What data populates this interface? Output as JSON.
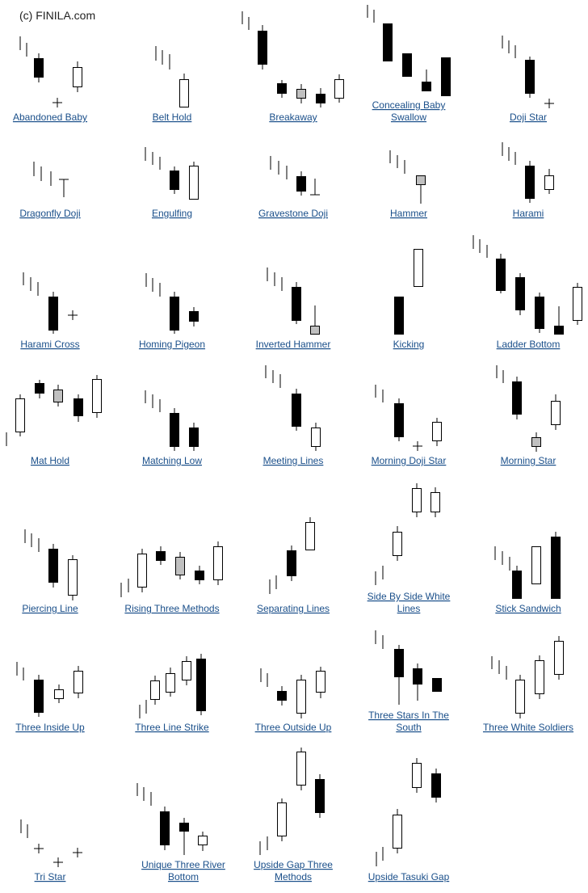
{
  "copyright": "(c) FINILA.com",
  "colors": {
    "bull": "#ffffff",
    "bear": "#000000",
    "neutral": "#c0c0c0",
    "label": "#1a4f8a"
  },
  "patterns": [
    {
      "name": "abandoned-baby",
      "label": [
        "Abandoned Baby"
      ]
    },
    {
      "name": "belt-hold",
      "label": [
        "Belt Hold"
      ]
    },
    {
      "name": "breakaway",
      "label": [
        "Breakaway"
      ]
    },
    {
      "name": "concealing-baby-swallow",
      "label": [
        "Concealing Baby",
        "Swallow"
      ]
    },
    {
      "name": "doji-star",
      "label": [
        "Doji Star"
      ]
    },
    {
      "name": "dragonfly-doji",
      "label": [
        "Dragonfly Doji"
      ]
    },
    {
      "name": "engulfing",
      "label": [
        "Engulfing"
      ]
    },
    {
      "name": "gravestone-doji",
      "label": [
        "Gravestone Doji"
      ]
    },
    {
      "name": "hammer",
      "label": [
        "Hammer"
      ]
    },
    {
      "name": "harami",
      "label": [
        "Harami"
      ]
    },
    {
      "name": "harami-cross",
      "label": [
        "Harami Cross"
      ]
    },
    {
      "name": "homing-pigeon",
      "label": [
        "Homing Pigeon"
      ]
    },
    {
      "name": "inverted-hammer",
      "label": [
        "Inverted Hammer"
      ]
    },
    {
      "name": "kicking",
      "label": [
        "Kicking"
      ]
    },
    {
      "name": "ladder-bottom",
      "label": [
        "Ladder Bottom"
      ]
    },
    {
      "name": "mat-hold",
      "label": [
        "Mat Hold"
      ]
    },
    {
      "name": "matching-low",
      "label": [
        "Matching Low"
      ]
    },
    {
      "name": "meeting-lines",
      "label": [
        "Meeting Lines"
      ]
    },
    {
      "name": "morning-doji-star",
      "label": [
        "Morning Doji Star"
      ]
    },
    {
      "name": "morning-star",
      "label": [
        "Morning Star"
      ]
    },
    {
      "name": "piercing-line",
      "label": [
        "Piercing Line"
      ]
    },
    {
      "name": "rising-three-methods",
      "label": [
        "Rising Three Methods"
      ]
    },
    {
      "name": "separating-lines",
      "label": [
        "Separating Lines"
      ]
    },
    {
      "name": "side-by-side-white-lines",
      "label": [
        "Side By Side White",
        "Lines"
      ]
    },
    {
      "name": "stick-sandwich",
      "label": [
        "Stick Sandwich"
      ]
    },
    {
      "name": "three-inside-up",
      "label": [
        "Three Inside Up"
      ]
    },
    {
      "name": "three-line-strike",
      "label": [
        "Three Line Strike"
      ]
    },
    {
      "name": "three-outside-up",
      "label": [
        "Three Outside Up"
      ]
    },
    {
      "name": "three-stars-in-the-south",
      "label": [
        "Three Stars In The",
        "South"
      ]
    },
    {
      "name": "three-white-soldiers",
      "label": [
        "Three White Soldiers"
      ]
    },
    {
      "name": "tri-star",
      "label": [
        "Tri Star"
      ]
    },
    {
      "name": "unique-three-river-bottom",
      "label": [
        "Unique Three River",
        "Bottom"
      ]
    },
    {
      "name": "upside-gap-three-methods",
      "label": [
        "Upside Gap Three",
        "Methods"
      ]
    },
    {
      "name": "upside-tasuki-gap",
      "label": [
        "Upside Tasuki Gap"
      ]
    }
  ]
}
